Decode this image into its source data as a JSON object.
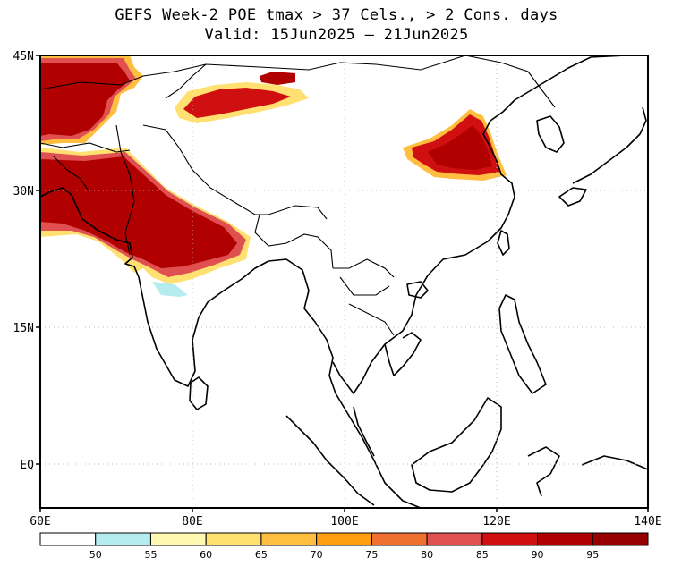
{
  "title": {
    "line1": "GEFS Week-2 POE tmax > 37 Cels., > 2 Cons. days",
    "line2": "Valid: 15Jun2025 – 21Jun2025"
  },
  "map": {
    "lat_labels": [
      "45N",
      "30N",
      "15N",
      "EQ"
    ],
    "lon_labels": [
      "60E",
      "80E",
      "100E",
      "120E",
      "140E"
    ],
    "lat_extent": [
      -5,
      45
    ],
    "lon_extent": [
      60,
      140
    ]
  },
  "colorbar": {
    "labels": [
      "50",
      "55",
      "60",
      "65",
      "70",
      "75",
      "80",
      "85",
      "90",
      "95"
    ],
    "colors": [
      "#ffffff",
      "#b4ecf0",
      "#fff8b0",
      "#ffe070",
      "#ffbe40",
      "#ff9e10",
      "#f07030",
      "#e05050",
      "#d01010",
      "#b00000",
      "#960000"
    ]
  }
}
